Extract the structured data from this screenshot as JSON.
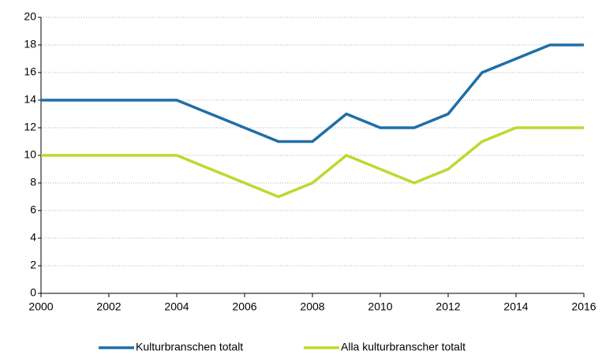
{
  "chart_data": {
    "type": "line",
    "x": [
      2000,
      2001,
      2002,
      2003,
      2004,
      2005,
      2006,
      2007,
      2008,
      2009,
      2010,
      2011,
      2012,
      2013,
      2014,
      2015,
      2016
    ],
    "series": [
      {
        "name": "Kulturbranschen totalt",
        "color": "#1f6ea8",
        "values": [
          14,
          14,
          14,
          14,
          14,
          13,
          12,
          11,
          11,
          13,
          12,
          12,
          13,
          16,
          17,
          18,
          18
        ]
      },
      {
        "name": "Alla kulturbranscher totalt",
        "color": "#c0d730",
        "values": [
          10,
          10,
          10,
          10,
          10,
          9,
          8,
          7,
          8,
          10,
          9,
          8,
          9,
          11,
          12,
          12,
          12
        ]
      }
    ],
    "xlim": [
      2000,
      2016
    ],
    "xticks": [
      2000,
      2002,
      2004,
      2006,
      2008,
      2010,
      2012,
      2014,
      2016
    ],
    "ylim": [
      0,
      20
    ],
    "yticks": [
      0,
      2,
      4,
      6,
      8,
      10,
      12,
      14,
      16,
      18,
      20
    ],
    "grid": true,
    "legend": "bottom"
  }
}
